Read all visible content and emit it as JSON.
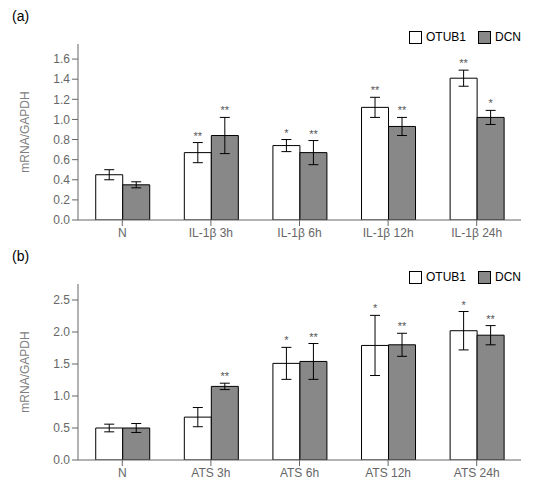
{
  "chart_data": [
    {
      "type": "bar",
      "title": "(a)",
      "ylabel": "mRNA/GAPDH",
      "categories": [
        "N",
        "IL-1β 3h",
        "IL-1β 6h",
        "IL-1β 12h",
        "IL-1β 24h"
      ],
      "series": [
        {
          "name": "OTUB1",
          "color": "white",
          "values": [
            0.45,
            0.67,
            0.74,
            1.12,
            1.41
          ],
          "errors": [
            0.05,
            0.1,
            0.06,
            0.1,
            0.08
          ],
          "stars": [
            null,
            "**",
            "*",
            "**",
            "**"
          ]
        },
        {
          "name": "DCN",
          "color": "#888888",
          "values": [
            0.35,
            0.84,
            0.67,
            0.93,
            1.02
          ],
          "errors": [
            0.03,
            0.18,
            0.12,
            0.09,
            0.07
          ],
          "stars": [
            null,
            "**",
            "**",
            "**",
            "*"
          ]
        }
      ],
      "ylim": [
        0,
        1.75
      ],
      "yticks": [
        {
          "value": 0,
          "label": "0.0"
        },
        0.2,
        0.4,
        0.6,
        0.8,
        {
          "value": 1.0,
          "label": "1.0"
        },
        1.2,
        1.4,
        1.6
      ],
      "grid": false,
      "legend": "upper right"
    },
    {
      "type": "bar",
      "title": "(b)",
      "ylabel": "mRNA/GAPDH",
      "categories": [
        "N",
        "ATS 3h",
        "ATS 6h",
        "ATS 12h",
        "ATS 24h"
      ],
      "series": [
        {
          "name": "OTUB1",
          "color": "white",
          "values": [
            0.5,
            0.67,
            1.51,
            1.79,
            2.02
          ],
          "errors": [
            0.06,
            0.15,
            0.25,
            0.47,
            0.3
          ],
          "stars": [
            null,
            null,
            "*",
            "*",
            "*"
          ]
        },
        {
          "name": "DCN",
          "color": "#888888",
          "values": [
            0.5,
            1.15,
            1.54,
            1.8,
            1.95
          ],
          "errors": [
            0.07,
            0.05,
            0.28,
            0.18,
            0.15
          ],
          "stars": [
            null,
            "**",
            "**",
            "**",
            "**"
          ]
        }
      ],
      "ylim": [
        0,
        2.75
      ],
      "yticks": [
        {
          "value": 0,
          "label": "0.0"
        },
        0.5,
        {
          "value": 1.0,
          "label": "1.0"
        },
        1.5,
        {
          "value": 2.0,
          "label": "2.0"
        },
        2.5
      ],
      "grid": false,
      "legend": "upper right"
    }
  ]
}
